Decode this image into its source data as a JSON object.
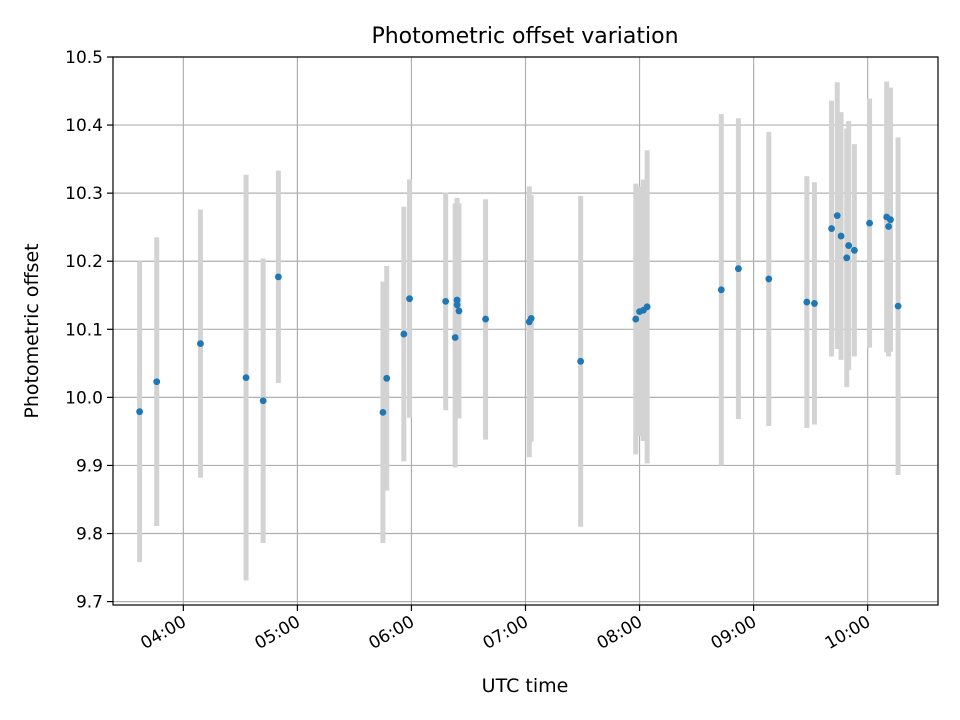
{
  "chart_data": {
    "type": "scatter",
    "title": "Photometric offset variation",
    "xlabel": "UTC time",
    "ylabel": "Photometric offset",
    "xlim": [
      "03:23",
      "10:37"
    ],
    "ylim": [
      9.695,
      10.5
    ],
    "x_ticks": [
      "04:00",
      "05:00",
      "06:00",
      "07:00",
      "08:00",
      "09:00",
      "10:00"
    ],
    "y_ticks": [
      9.7,
      9.8,
      9.9,
      10.0,
      10.1,
      10.2,
      10.3,
      10.4,
      10.5
    ],
    "y_tick_labels": [
      "9.7",
      "9.8",
      "9.9",
      "10.0",
      "10.1",
      "10.2",
      "10.3",
      "10.4",
      "10.5"
    ],
    "grid": true,
    "colors": {
      "point": "#1f77b4",
      "errorbar": "#d3d3d3",
      "grid": "#b0b0b0"
    },
    "points": [
      {
        "t": "03:37",
        "y": 9.979,
        "lo": 9.758,
        "hi": 10.2
      },
      {
        "t": "03:46",
        "y": 10.023,
        "lo": 9.811,
        "hi": 10.235
      },
      {
        "t": "04:09",
        "y": 10.079,
        "lo": 9.882,
        "hi": 10.276
      },
      {
        "t": "04:33",
        "y": 10.029,
        "lo": 9.731,
        "hi": 10.327
      },
      {
        "t": "04:42",
        "y": 9.995,
        "lo": 9.786,
        "hi": 10.204
      },
      {
        "t": "04:50",
        "y": 10.177,
        "lo": 10.021,
        "hi": 10.333
      },
      {
        "t": "05:45",
        "y": 9.978,
        "lo": 9.786,
        "hi": 10.17
      },
      {
        "t": "05:47",
        "y": 10.028,
        "lo": 9.863,
        "hi": 10.193
      },
      {
        "t": "05:56",
        "y": 10.093,
        "lo": 9.906,
        "hi": 10.28
      },
      {
        "t": "05:59",
        "y": 10.145,
        "lo": 9.97,
        "hi": 10.32
      },
      {
        "t": "06:18",
        "y": 10.141,
        "lo": 9.981,
        "hi": 10.301
      },
      {
        "t": "06:23",
        "y": 10.088,
        "lo": 9.897,
        "hi": 10.285
      },
      {
        "t": "06:24",
        "y": 10.143,
        "lo": 9.993,
        "hi": 10.293
      },
      {
        "t": "06:24",
        "y": 10.136,
        "lo": 9.985,
        "hi": 10.287
      },
      {
        "t": "06:25",
        "y": 10.127,
        "lo": 9.969,
        "hi": 10.285
      },
      {
        "t": "06:39",
        "y": 10.115,
        "lo": 9.938,
        "hi": 10.291
      },
      {
        "t": "07:02",
        "y": 10.111,
        "lo": 9.912,
        "hi": 10.31
      },
      {
        "t": "07:03",
        "y": 10.116,
        "lo": 9.935,
        "hi": 10.297
      },
      {
        "t": "07:29",
        "y": 10.053,
        "lo": 9.81,
        "hi": 10.296
      },
      {
        "t": "07:58",
        "y": 10.115,
        "lo": 9.916,
        "hi": 10.314
      },
      {
        "t": "08:00",
        "y": 10.126,
        "lo": 9.943,
        "hi": 10.309
      },
      {
        "t": "08:02",
        "y": 10.128,
        "lo": 9.936,
        "hi": 10.32
      },
      {
        "t": "08:04",
        "y": 10.133,
        "lo": 9.903,
        "hi": 10.363
      },
      {
        "t": "08:43",
        "y": 10.158,
        "lo": 9.9,
        "hi": 10.416
      },
      {
        "t": "08:52",
        "y": 10.189,
        "lo": 9.968,
        "hi": 10.41
      },
      {
        "t": "09:08",
        "y": 10.174,
        "lo": 9.958,
        "hi": 10.39
      },
      {
        "t": "09:28",
        "y": 10.14,
        "lo": 9.955,
        "hi": 10.325
      },
      {
        "t": "09:32",
        "y": 10.138,
        "lo": 9.96,
        "hi": 10.316
      },
      {
        "t": "09:41",
        "y": 10.248,
        "lo": 10.06,
        "hi": 10.436
      },
      {
        "t": "09:44",
        "y": 10.267,
        "lo": 10.071,
        "hi": 10.463
      },
      {
        "t": "09:46",
        "y": 10.237,
        "lo": 10.055,
        "hi": 10.419
      },
      {
        "t": "09:49",
        "y": 10.205,
        "lo": 10.015,
        "hi": 10.395
      },
      {
        "t": "09:50",
        "y": 10.223,
        "lo": 10.04,
        "hi": 10.406
      },
      {
        "t": "09:53",
        "y": 10.216,
        "lo": 10.06,
        "hi": 10.372
      },
      {
        "t": "10:01",
        "y": 10.256,
        "lo": 10.073,
        "hi": 10.439
      },
      {
        "t": "10:10",
        "y": 10.265,
        "lo": 10.066,
        "hi": 10.464
      },
      {
        "t": "10:11",
        "y": 10.251,
        "lo": 10.06,
        "hi": 10.442
      },
      {
        "t": "10:12",
        "y": 10.261,
        "lo": 10.067,
        "hi": 10.455
      },
      {
        "t": "10:16",
        "y": 10.134,
        "lo": 9.886,
        "hi": 10.382
      }
    ]
  }
}
